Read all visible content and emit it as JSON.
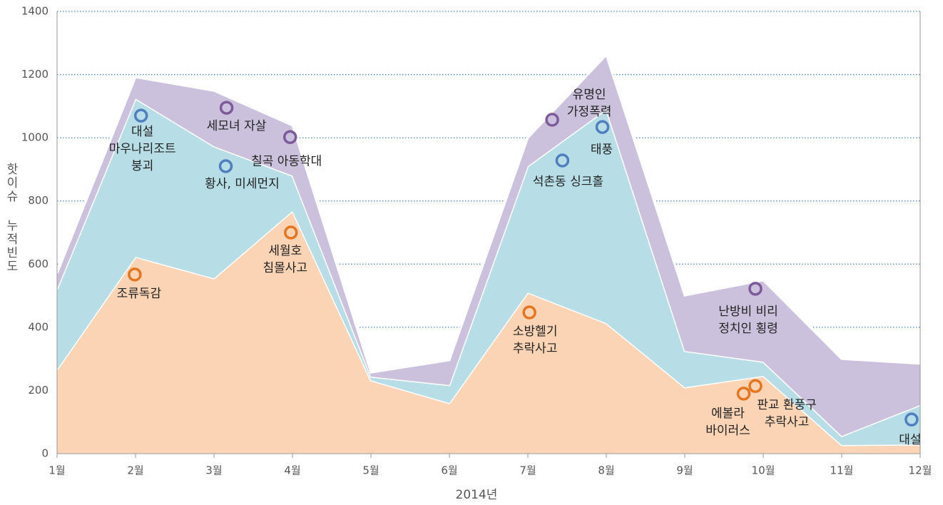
{
  "chart_data": {
    "type": "stacked_area",
    "x_label": "2014년",
    "y_label": "핫이슈 누적빈도",
    "categories": [
      "1월",
      "2월",
      "3월",
      "4월",
      "5월",
      "6월",
      "7월",
      "8월",
      "9월",
      "10월",
      "11월",
      "12월"
    ],
    "series": [
      {
        "color": "#fbd3b5",
        "values": [
          266,
          623,
          555,
          768,
          232,
          160,
          510,
          413,
          210,
          246,
          27,
          29
        ]
      },
      {
        "color": "#b7dde6",
        "values": [
          255,
          501,
          418,
          112,
          12,
          57,
          400,
          677,
          115,
          45,
          29,
          125
        ]
      },
      {
        "color": "#cbc1dd",
        "values": [
          50,
          68,
          176,
          159,
          13,
          79,
          90,
          172,
          176,
          258,
          244,
          131
        ]
      }
    ],
    "ylim": [
      0,
      1400
    ],
    "yticks": [
      0,
      200,
      400,
      600,
      800,
      1000,
      1200,
      1400
    ],
    "grid": true,
    "annotations": [
      {
        "lines": [
          "대설",
          "마우나리조트",
          "붕괴"
        ],
        "x": 1.07,
        "y": 1070,
        "color": "#4f7fbf"
      },
      {
        "lines": [
          "조류독감"
        ],
        "x": 0.99,
        "y": 567,
        "color": "#e5761f"
      },
      {
        "lines": [
          "세모녀 자살"
        ],
        "x": 2.16,
        "y": 1095,
        "color": "#7d5a9a"
      },
      {
        "lines": [
          "황사, 미세먼지"
        ],
        "x": 2.15,
        "y": 910,
        "color": "#4f7fbf"
      },
      {
        "lines": [
          "칠곡 아동학대"
        ],
        "x": 2.97,
        "y": 1002,
        "color": "#7d5a9a"
      },
      {
        "lines": [
          "세월호",
          "침몰사고"
        ],
        "x": 2.98,
        "y": 700,
        "color": "#e5761f"
      },
      {
        "lines": [
          "유명인",
          "가정폭력"
        ],
        "x": 6.31,
        "y": 1057,
        "color": "#7d5a9a"
      },
      {
        "lines": [
          "석촌동 싱크홀"
        ],
        "x": 6.44,
        "y": 928,
        "color": "#4f7fbf"
      },
      {
        "lines": [
          "태풍"
        ],
        "x": 6.95,
        "y": 1034,
        "color": "#4f7fbf"
      },
      {
        "lines": [
          "소방헬기",
          "추락사고"
        ],
        "x": 6.02,
        "y": 447,
        "color": "#e5761f"
      },
      {
        "lines": [
          "난방비 비리",
          "정치인 횡령"
        ],
        "x": 8.9,
        "y": 522,
        "color": "#7d5a9a"
      },
      {
        "lines": [
          "에볼라",
          "바이러스"
        ],
        "x": 8.75,
        "y": 190,
        "color": "#e5761f"
      },
      {
        "lines": [
          "판교 환풍구",
          "추락사고"
        ],
        "x": 8.9,
        "y": 214,
        "color": "#e5761f"
      },
      {
        "lines": [
          "대설"
        ],
        "x": 10.89,
        "y": 108,
        "color": "#4f7fbf"
      }
    ]
  }
}
